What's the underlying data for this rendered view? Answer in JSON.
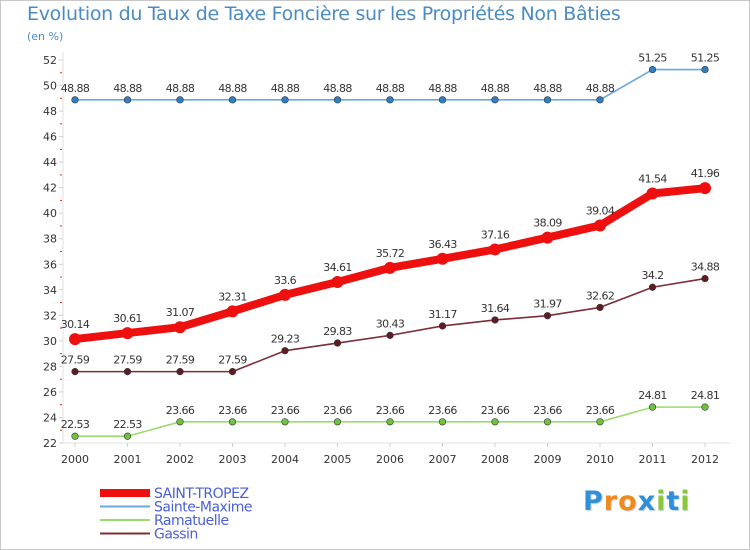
{
  "title": "Evolution du Taux de Taxe Foncière sur les Propriétés Non Bâties",
  "subtitle": "(en %)",
  "logo": {
    "letters": [
      "P",
      "r",
      "o",
      "x",
      "i",
      "t",
      "i"
    ],
    "colors": [
      "#2f8fd8",
      "#f08a1c",
      "#f08a1c",
      "#2f8fd8",
      "#8cc63e",
      "#2f8fd8",
      "#8cc63e"
    ]
  },
  "colors": {
    "axis": "#e2e2e2",
    "tick_red": "#e3231a"
  },
  "chart_data": {
    "type": "line",
    "title": "Evolution du Taux de Taxe Foncière sur les Propriétés Non Bâties",
    "ylabel": "(en %)",
    "xlabel": "",
    "x": [
      "2000",
      "2001",
      "2002",
      "2003",
      "2004",
      "2005",
      "2006",
      "2007",
      "2008",
      "2009",
      "2010",
      "2011",
      "2012"
    ],
    "ylim": [
      22,
      52
    ],
    "yticks": [
      22,
      24,
      26,
      28,
      30,
      32,
      34,
      36,
      38,
      40,
      42,
      44,
      46,
      48,
      50,
      52
    ],
    "grid": false,
    "legend_position": "bottom-left",
    "series": [
      {
        "name": "SAINT-TROPEZ",
        "color": "#ee0f0f",
        "marker_color": "#ee0f0f",
        "style": "bold",
        "values": [
          30.14,
          30.61,
          31.07,
          32.31,
          33.6,
          34.61,
          35.72,
          36.43,
          37.16,
          38.09,
          39.04,
          41.54,
          41.96
        ],
        "labels": [
          "30.14",
          "30.61",
          "31.07",
          "32.31",
          "33.6",
          "34.61",
          "35.72",
          "36.43",
          "37.16",
          "38.09",
          "39.04",
          "41.54",
          "41.96"
        ]
      },
      {
        "name": "Sainte-Maxime",
        "color": "#6aa8de",
        "marker_color": "#2e7fc9",
        "style": "thin",
        "values": [
          48.88,
          48.88,
          48.88,
          48.88,
          48.88,
          48.88,
          48.88,
          48.88,
          48.88,
          48.88,
          48.88,
          51.25,
          51.25
        ],
        "labels": [
          "48.88",
          "48.88",
          "48.88",
          "48.88",
          "48.88",
          "48.88",
          "48.88",
          "48.88",
          "48.88",
          "48.88",
          "48.88",
          "51.25",
          "51.25"
        ]
      },
      {
        "name": "Ramatuelle",
        "color": "#9bdc6e",
        "marker_color": "#6fc23d",
        "style": "thin",
        "values": [
          22.53,
          22.53,
          23.66,
          23.66,
          23.66,
          23.66,
          23.66,
          23.66,
          23.66,
          23.66,
          23.66,
          24.81,
          24.81
        ],
        "labels": [
          "22.53",
          "22.53",
          "23.66",
          "23.66",
          "23.66",
          "23.66",
          "23.66",
          "23.66",
          "23.66",
          "23.66",
          "23.66",
          "24.81",
          "24.81"
        ]
      },
      {
        "name": "Gassin",
        "color": "#7b2e35",
        "marker_color": "#5e1d22",
        "style": "thin",
        "values": [
          27.59,
          27.59,
          27.59,
          27.59,
          29.23,
          29.83,
          30.43,
          31.17,
          31.64,
          31.97,
          32.62,
          34.2,
          34.88
        ],
        "labels": [
          "27.59",
          "27.59",
          "27.59",
          "27.59",
          "29.23",
          "29.83",
          "30.43",
          "31.17",
          "31.64",
          "31.97",
          "32.62",
          "34.2",
          "34.88"
        ]
      }
    ]
  }
}
